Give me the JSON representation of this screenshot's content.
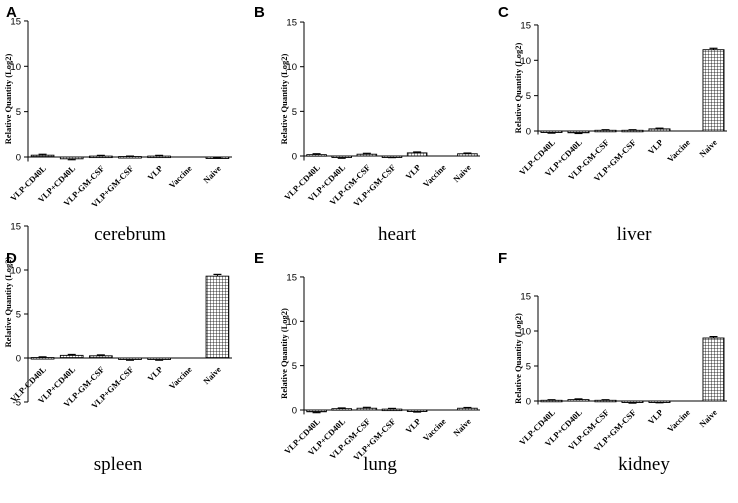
{
  "chart_data": [
    {
      "type": "bar",
      "panel": "A",
      "title": "cerebrum",
      "ylabel": "Relative Quantity (Log2)",
      "yticks": [
        0,
        5,
        10,
        15
      ],
      "ylim": [
        -0.5,
        15
      ],
      "categories": [
        "VLP-CD40L",
        "VLP+CD40L",
        "VLP-GM-CSF",
        "VLP+GM-CSF",
        "VLP",
        "Vaccine",
        "Naive"
      ],
      "values": [
        0.2,
        -0.2,
        0.1,
        0.05,
        0.1,
        0.0,
        -0.05
      ],
      "errors": [
        0.1,
        0.1,
        0.08,
        0.05,
        0.08,
        0.0,
        0.05
      ]
    },
    {
      "type": "bar",
      "panel": "B",
      "title": "heart",
      "ylabel": "Relative Quantity (Log2)",
      "yticks": [
        0,
        5,
        10,
        15
      ],
      "ylim": [
        -0.5,
        15
      ],
      "categories": [
        "VLP-CD40L",
        "VLP+CD40L",
        "VLP-GM-CSF",
        "VLP+GM-CSF",
        "VLP",
        "Vaccine",
        "Naive"
      ],
      "values": [
        0.15,
        -0.15,
        0.2,
        -0.1,
        0.35,
        0.0,
        0.25
      ],
      "errors": [
        0.1,
        0.1,
        0.1,
        0.08,
        0.1,
        0.0,
        0.08
      ]
    },
    {
      "type": "bar",
      "panel": "C",
      "title": "liver",
      "ylabel": "Relative Quantity (Log2)",
      "yticks": [
        0,
        5,
        10,
        15
      ],
      "ylim": [
        -0.5,
        15
      ],
      "categories": [
        "VLP-CD40L",
        "VLP+CD40L",
        "VLP-GM-CSF",
        "VLP+GM-CSF",
        "VLP",
        "Vaccine",
        "Naive"
      ],
      "values": [
        -0.2,
        -0.25,
        0.1,
        0.1,
        0.3,
        0.0,
        11.5
      ],
      "errors": [
        0.1,
        0.1,
        0.08,
        0.08,
        0.1,
        0.0,
        0.2
      ]
    },
    {
      "type": "bar",
      "panel": "D",
      "title": "spleen",
      "ylabel": "Relative Quantity (Log2)",
      "yticks": [
        -5,
        0,
        5,
        10,
        15
      ],
      "ylim": [
        -5,
        15
      ],
      "categories": [
        "VLP-CD40L",
        "VLP+CD40L",
        "VLP-GM-CSF",
        "VLP+GM-CSF",
        "VLP",
        "Vaccine",
        "Naive"
      ],
      "values": [
        0.05,
        0.3,
        0.25,
        -0.15,
        -0.15,
        0.0,
        9.3
      ],
      "errors": [
        0.08,
        0.1,
        0.1,
        0.1,
        0.1,
        0.0,
        0.2
      ]
    },
    {
      "type": "bar",
      "panel": "E",
      "title": "lung",
      "ylabel": "Relative Quantity (Log2)",
      "yticks": [
        0,
        5,
        10,
        15
      ],
      "ylim": [
        -0.5,
        15
      ],
      "categories": [
        "VLP-CD40L",
        "VLP+CD40L",
        "VLP-GM-CSF",
        "VLP+GM-CSF",
        "VLP",
        "Vaccine",
        "Naive"
      ],
      "values": [
        -0.2,
        0.15,
        0.2,
        0.1,
        -0.15,
        0.0,
        0.2
      ],
      "errors": [
        0.1,
        0.08,
        0.1,
        0.08,
        0.08,
        0.0,
        0.08
      ]
    },
    {
      "type": "bar",
      "panel": "F",
      "title": "kidney",
      "ylabel": "Relative Quantity (Log2)",
      "yticks": [
        0,
        5,
        10,
        15
      ],
      "ylim": [
        -0.5,
        15
      ],
      "categories": [
        "VLP-CD40L",
        "VLP+CD40L",
        "VLP-GM-CSF",
        "VLP+GM-CSF",
        "VLP",
        "Vaccine",
        "Naive"
      ],
      "values": [
        0.1,
        0.2,
        0.1,
        -0.2,
        -0.15,
        0.0,
        9.0
      ],
      "errors": [
        0.08,
        0.1,
        0.08,
        0.1,
        0.1,
        0.0,
        0.2
      ]
    }
  ],
  "colors": {
    "axis": "#000000",
    "bar_fill": "#ffffff",
    "hatch": "#000000"
  }
}
